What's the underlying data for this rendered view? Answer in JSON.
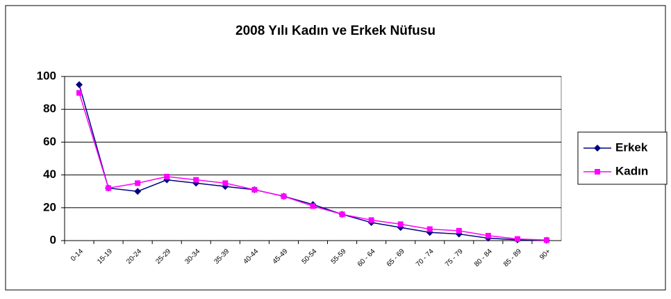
{
  "chart_data": {
    "type": "line",
    "title": "2008 Yılı Kadın ve Erkek Nüfusu",
    "categories": [
      "0-14",
      "15-19",
      "20-24",
      "25-29",
      "30-34",
      "35-39",
      "40-44",
      "45-49",
      "50-54",
      "55-59",
      "60 - 64",
      "65 - 69",
      "70 - 74",
      "75 - 79",
      "80 - 84",
      "85 - 89",
      "90+"
    ],
    "series": [
      {
        "name": "Erkek",
        "color": "#000080",
        "values": [
          95,
          32,
          30,
          37,
          35,
          33,
          31,
          27,
          22,
          16,
          11,
          8,
          5,
          4,
          1.5,
          0.5,
          0.2
        ]
      },
      {
        "name": "Kadın",
        "color": "#ff00ff",
        "values": [
          90,
          32,
          35,
          39,
          37,
          35,
          31,
          27,
          21,
          16,
          12.5,
          10,
          7,
          6,
          3,
          1,
          0.3
        ]
      }
    ],
    "ylim": [
      0,
      100
    ],
    "yticks": [
      0,
      20,
      40,
      60,
      80,
      100
    ],
    "grid": true,
    "legend": "right"
  }
}
